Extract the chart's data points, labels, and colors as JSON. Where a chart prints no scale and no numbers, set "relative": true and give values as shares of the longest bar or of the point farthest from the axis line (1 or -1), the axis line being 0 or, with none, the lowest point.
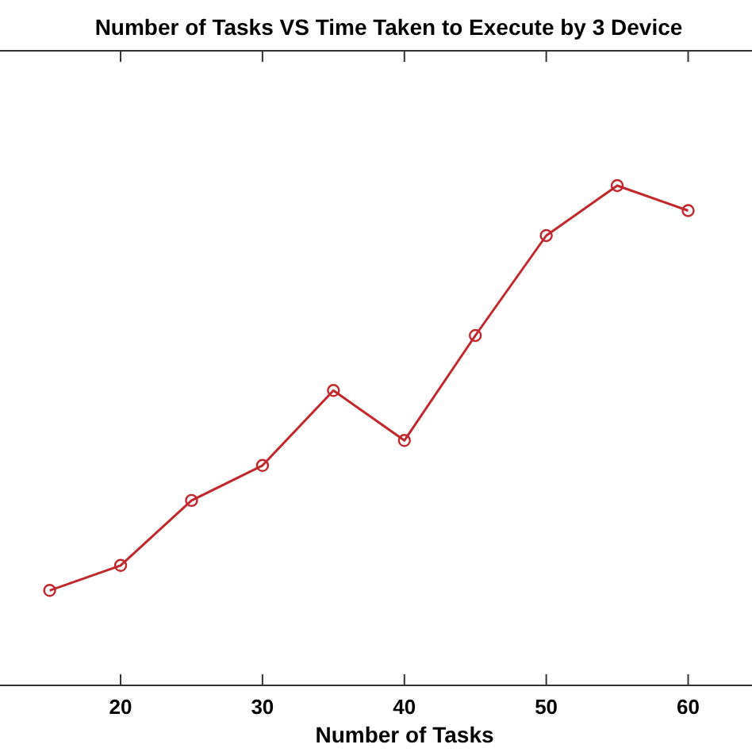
{
  "chart_data": {
    "type": "line",
    "title": "Number of Tasks VS Time Taken to Execute by 3 Device",
    "xlabel": "Number of Tasks",
    "relative": true,
    "x": [
      15,
      20,
      25,
      30,
      35,
      40,
      45,
      50,
      55,
      60
    ],
    "values": [
      0.19,
      0.24,
      0.37,
      0.44,
      0.59,
      0.49,
      0.7,
      0.9,
      1,
      0.95
    ],
    "color": "#c0282d",
    "marker": "circle",
    "line_style": "solid",
    "xlim": [
      11.5,
      64.5
    ],
    "xticks": [
      20,
      30,
      40,
      50,
      60
    ],
    "tick_labels": "x",
    "grid": false
  }
}
